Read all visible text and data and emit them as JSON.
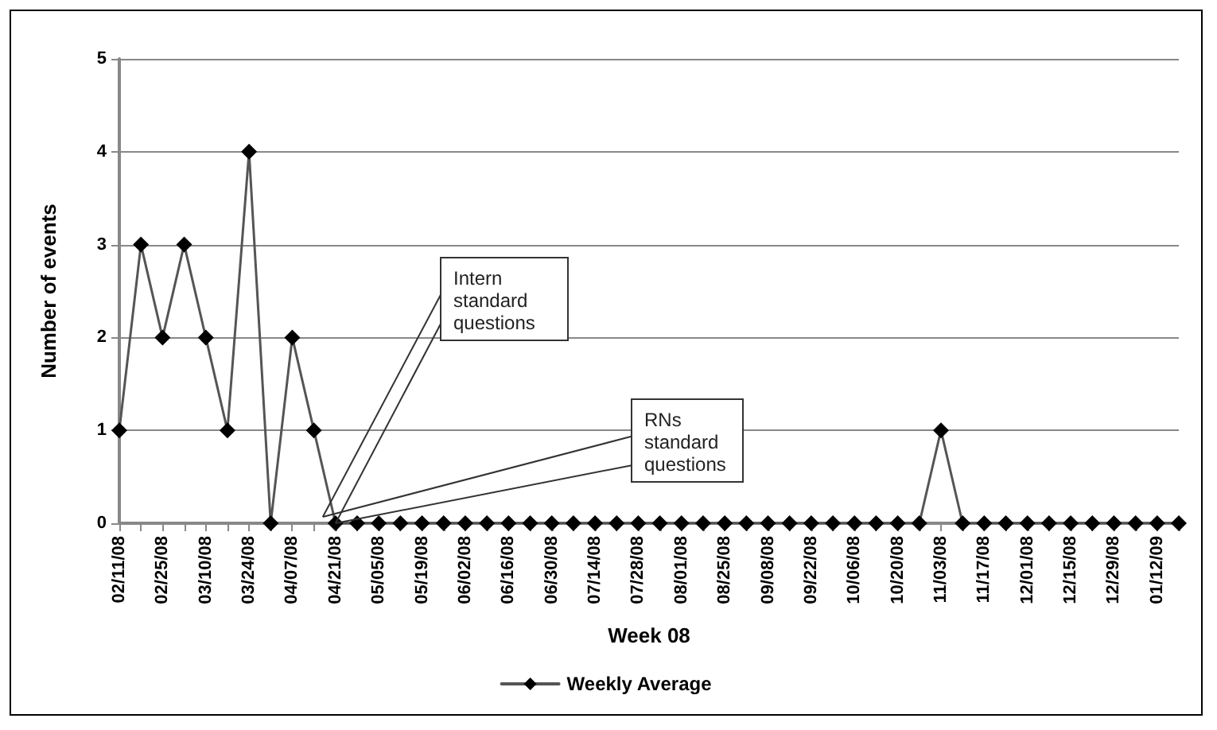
{
  "chart_data": {
    "type": "line",
    "xlabel": "Week 08",
    "ylabel": "Number of events",
    "categories": [
      "02/11/08",
      null,
      "02/25/08",
      null,
      "03/10/08",
      null,
      "03/24/08",
      null,
      "04/07/08",
      null,
      "04/21/08",
      null,
      "05/05/08",
      null,
      "05/19/08",
      null,
      "06/02/08",
      null,
      "06/16/08",
      null,
      "06/30/08",
      null,
      "07/14/08",
      null,
      "07/28/08",
      null,
      "08/01/08",
      null,
      "08/25/08",
      null,
      "09/08/08",
      null,
      "09/22/08",
      null,
      "10/06/08",
      null,
      "10/20/08",
      null,
      "11/03/08",
      null,
      "11/17/08",
      null,
      "12/01/08",
      null,
      "12/15/08",
      null,
      "12/29/08",
      null,
      "01/12/09",
      null
    ],
    "series": [
      {
        "name": "Weekly Average",
        "color": "#000000",
        "values": [
          1,
          3,
          2,
          3,
          2,
          1,
          4,
          0,
          2,
          1,
          0,
          0,
          0,
          0,
          0,
          0,
          0,
          0,
          0,
          0,
          0,
          0,
          0,
          0,
          0,
          0,
          0,
          0,
          0,
          0,
          0,
          0,
          0,
          0,
          0,
          0,
          0,
          0,
          1,
          0,
          0,
          0,
          0,
          0,
          0,
          0,
          0,
          0,
          0,
          0
        ]
      }
    ],
    "ylim": [
      0,
      5
    ],
    "yticks": [
      0,
      1,
      2,
      3,
      4,
      5
    ],
    "grid": "y",
    "legend": "bottom",
    "marker": "diamond",
    "line_style": "solid",
    "annotations": [
      {
        "text": "Intern standard questions",
        "x": "04/21/08",
        "y": 0
      },
      {
        "text": "RNs standard questions",
        "x": "04/21/08",
        "y": 0
      }
    ]
  }
}
